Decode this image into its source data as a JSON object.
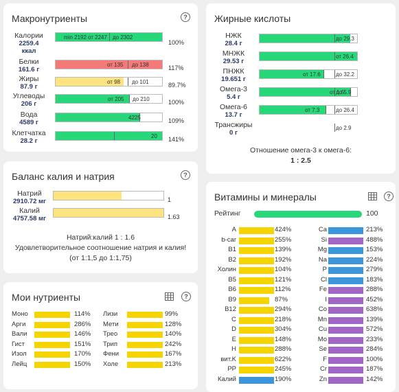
{
  "colors": {
    "green": "#27d77a",
    "red": "#f47a7a",
    "yellow": "#f5d400",
    "light_yellow": "#fde47f",
    "blue": "#3b96dc",
    "purple": "#a266c7"
  },
  "macro": {
    "title": "Макронутриенты",
    "help_icon": "?",
    "rows": [
      {
        "name": "Калории",
        "value": "2259.4",
        "unit": "ккал",
        "min": "min 2192",
        "mid": "от 2247",
        "max": "до 2302",
        "pct": "100%",
        "level": 1.0,
        "color": "green",
        "mark": 0.5
      },
      {
        "name": "Белки",
        "value": "161.6 г",
        "unit": "",
        "min": "",
        "mid": "от 135",
        "max": "до 138",
        "pct": "117%",
        "level": 1.0,
        "color": "red",
        "mark": 0.68
      },
      {
        "name": "Жиры",
        "value": "87.9 г",
        "unit": "",
        "min": "",
        "mid": "от 98",
        "max": "до 101",
        "pct": "89.7%",
        "level": 0.64,
        "color": "light_yellow",
        "mark": 0.68
      },
      {
        "name": "Углеводы",
        "value": "206 г",
        "unit": "",
        "min": "",
        "mid": "от 205",
        "max": "до 210",
        "pct": "100%",
        "level": 0.69,
        "color": "green",
        "mark": 0.69
      },
      {
        "name": "Вода",
        "value": "4589 г",
        "unit": "",
        "min": "",
        "mid": "4225",
        "max": "",
        "pct": "109%",
        "level": 0.79,
        "color": "green",
        "mark": 0.79
      },
      {
        "name": "Клетчатка",
        "value": "28.2 г",
        "unit": "",
        "min": "",
        "mid": "20",
        "max": "",
        "pct": "141%",
        "level": 1.0,
        "color": "green",
        "mark": 0.55
      }
    ]
  },
  "fatty": {
    "title": "Жирные кислоты",
    "rows": [
      {
        "name": "НЖК",
        "value": "28.4 г",
        "mid": "",
        "max": "до 29.3",
        "level": 0.93,
        "color": "green"
      },
      {
        "name": "МНЖК",
        "value": "29.53 г",
        "mid": "",
        "max": "от 26.4",
        "level": 1.0,
        "color": "green"
      },
      {
        "name": "ПНЖК",
        "value": "19.651 г",
        "mid": "от 17.6",
        "max": "до 32.2",
        "level": 0.66,
        "color": "green"
      },
      {
        "name": "Омега-3",
        "value": "5.4 г",
        "mid": "от 1.5",
        "max": "до 5.9",
        "level": 0.93,
        "color": "green"
      },
      {
        "name": "Омега-6",
        "value": "13.7 г",
        "mid": "от 7.3",
        "max": "до 26.4",
        "level": 0.68,
        "color": "green"
      },
      {
        "name": "Трансжиры",
        "value": "0 г",
        "mid": "",
        "max": "до 2.9",
        "level": 0,
        "color": "green"
      }
    ],
    "ratio_label": "Отношение омега-3 к омега-6:",
    "ratio_value": "1 : 2.5"
  },
  "balance": {
    "title": "Баланс калия и натрия",
    "rows": [
      {
        "name": "Натрий",
        "value": "2910.72 мг",
        "pct": "1",
        "level": 0.62
      },
      {
        "name": "Калий",
        "value": "4757.58 мг",
        "pct": "1.63",
        "level": 1.0
      }
    ],
    "ratio": "Натрий:калий 1 : 1.6",
    "note": "Удовлетворительное соотношение натрия и калия! (от 1:1,5 до 1:1,75)"
  },
  "my_nutrients": {
    "title": "Мои нутриенты",
    "left": [
      {
        "name": "Моно",
        "pct": "114%"
      },
      {
        "name": "Арги",
        "pct": "286%"
      },
      {
        "name": "Вали",
        "pct": "146%"
      },
      {
        "name": "Гист",
        "pct": "151%"
      },
      {
        "name": "Изол",
        "pct": "170%"
      },
      {
        "name": "Лейц",
        "pct": "150%"
      }
    ],
    "right": [
      {
        "name": "Лизи",
        "pct": "99%"
      },
      {
        "name": "Мети",
        "pct": "128%"
      },
      {
        "name": "Трео",
        "pct": "140%"
      },
      {
        "name": "Трип",
        "pct": "242%"
      },
      {
        "name": "Фени",
        "pct": "167%"
      },
      {
        "name": "Холе",
        "pct": "213%"
      }
    ]
  },
  "vitamins": {
    "title": "Витамины и минералы",
    "rating_label": "Рейтинг",
    "rating_value": "100",
    "left": [
      {
        "name": "A",
        "pct": "424%",
        "color": "yellow",
        "level": 1.0
      },
      {
        "name": "b-car",
        "pct": "255%",
        "color": "yellow",
        "level": 1.0
      },
      {
        "name": "B1",
        "pct": "139%",
        "color": "yellow",
        "level": 1.0
      },
      {
        "name": "B2",
        "pct": "192%",
        "color": "yellow",
        "level": 1.0
      },
      {
        "name": "Холин",
        "pct": "104%",
        "color": "yellow",
        "level": 1.0
      },
      {
        "name": "B5",
        "pct": "121%",
        "color": "yellow",
        "level": 1.0
      },
      {
        "name": "B6",
        "pct": "112%",
        "color": "yellow",
        "level": 1.0
      },
      {
        "name": "B9",
        "pct": "87%",
        "color": "yellow",
        "level": 0.87
      },
      {
        "name": "B12",
        "pct": "294%",
        "color": "yellow",
        "level": 1.0
      },
      {
        "name": "C",
        "pct": "218%",
        "color": "yellow",
        "level": 1.0
      },
      {
        "name": "D",
        "pct": "304%",
        "color": "yellow",
        "level": 1.0
      },
      {
        "name": "E",
        "pct": "148%",
        "color": "yellow",
        "level": 1.0
      },
      {
        "name": "H",
        "pct": "288%",
        "color": "yellow",
        "level": 1.0
      },
      {
        "name": "вит.K",
        "pct": "622%",
        "color": "yellow",
        "level": 1.0
      },
      {
        "name": "PP",
        "pct": "245%",
        "color": "yellow",
        "level": 1.0
      },
      {
        "name": "Калий",
        "pct": "190%",
        "color": "blue",
        "level": 1.0
      }
    ],
    "right": [
      {
        "name": "Ca",
        "pct": "213%",
        "color": "blue",
        "level": 1.0
      },
      {
        "name": "Si",
        "pct": "488%",
        "color": "purple",
        "level": 1.0
      },
      {
        "name": "Mg",
        "pct": "153%",
        "color": "blue",
        "level": 1.0
      },
      {
        "name": "Na",
        "pct": "224%",
        "color": "blue",
        "level": 1.0
      },
      {
        "name": "P",
        "pct": "279%",
        "color": "blue",
        "level": 1.0
      },
      {
        "name": "Cl",
        "pct": "183%",
        "color": "blue",
        "level": 1.0
      },
      {
        "name": "Fe",
        "pct": "288%",
        "color": "purple",
        "level": 1.0
      },
      {
        "name": "I",
        "pct": "452%",
        "color": "purple",
        "level": 1.0
      },
      {
        "name": "Co",
        "pct": "638%",
        "color": "purple",
        "level": 1.0
      },
      {
        "name": "Mn",
        "pct": "139%",
        "color": "purple",
        "level": 1.0
      },
      {
        "name": "Cu",
        "pct": "572%",
        "color": "purple",
        "level": 1.0
      },
      {
        "name": "Mo",
        "pct": "233%",
        "color": "purple",
        "level": 1.0
      },
      {
        "name": "Se",
        "pct": "284%",
        "color": "purple",
        "level": 1.0
      },
      {
        "name": "F",
        "pct": "100%",
        "color": "purple",
        "level": 1.0
      },
      {
        "name": "Cr",
        "pct": "187%",
        "color": "purple",
        "level": 1.0
      },
      {
        "name": "Zn",
        "pct": "142%",
        "color": "purple",
        "level": 1.0
      }
    ]
  }
}
